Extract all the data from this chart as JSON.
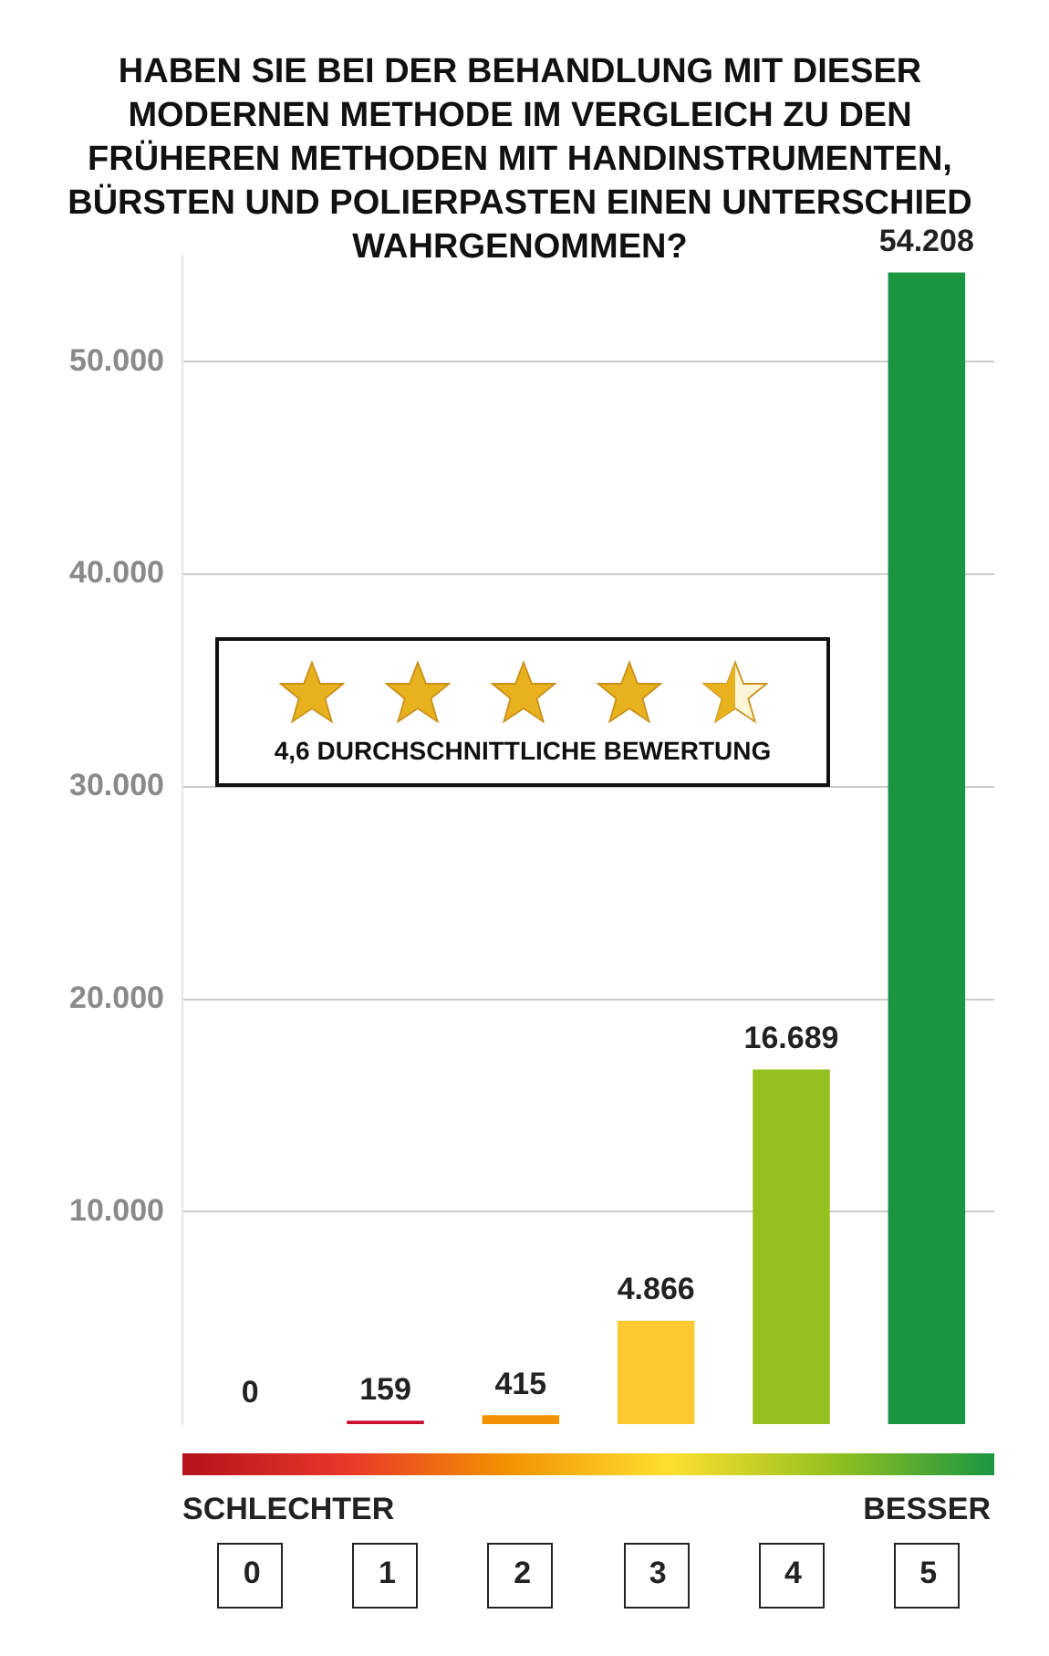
{
  "chart_data": {
    "type": "bar",
    "title": "HABEN SIE BEI DER BEHANDLUNG MIT DIESER MODERNEN METHODE IM VERGLEICH ZU DEN FRÜHEREN METHODEN MIT HANDINSTRUMENTEN, BÜRSTEN UND POLIERPASTEN EINEN UNTERSCHIED WAHRGENOMMEN?",
    "categories": [
      "0",
      "1",
      "2",
      "3",
      "4",
      "5"
    ],
    "values": [
      0,
      159,
      415,
      4866,
      16689,
      54208
    ],
    "value_labels": [
      "0",
      "159",
      "415",
      "4.866",
      "16.689",
      "54.208"
    ],
    "colors": [
      "#c8102e",
      "#c8102e",
      "#f39200",
      "#fdc830",
      "#95c11f",
      "#1a9641"
    ],
    "ylim": [
      0,
      55000
    ],
    "yticks": [
      {
        "value": 10000,
        "label": "10.000"
      },
      {
        "value": 20000,
        "label": "20.000"
      },
      {
        "value": 30000,
        "label": "30.000"
      },
      {
        "value": 40000,
        "label": "40.000"
      },
      {
        "value": 50000,
        "label": "50.000"
      }
    ],
    "grid": "y",
    "legend": false,
    "annotations": [
      "4,6 DURCHSCHNITTLICHE BEWERTUNG",
      "SCHLECHTER",
      "BESSER"
    ]
  }
}
